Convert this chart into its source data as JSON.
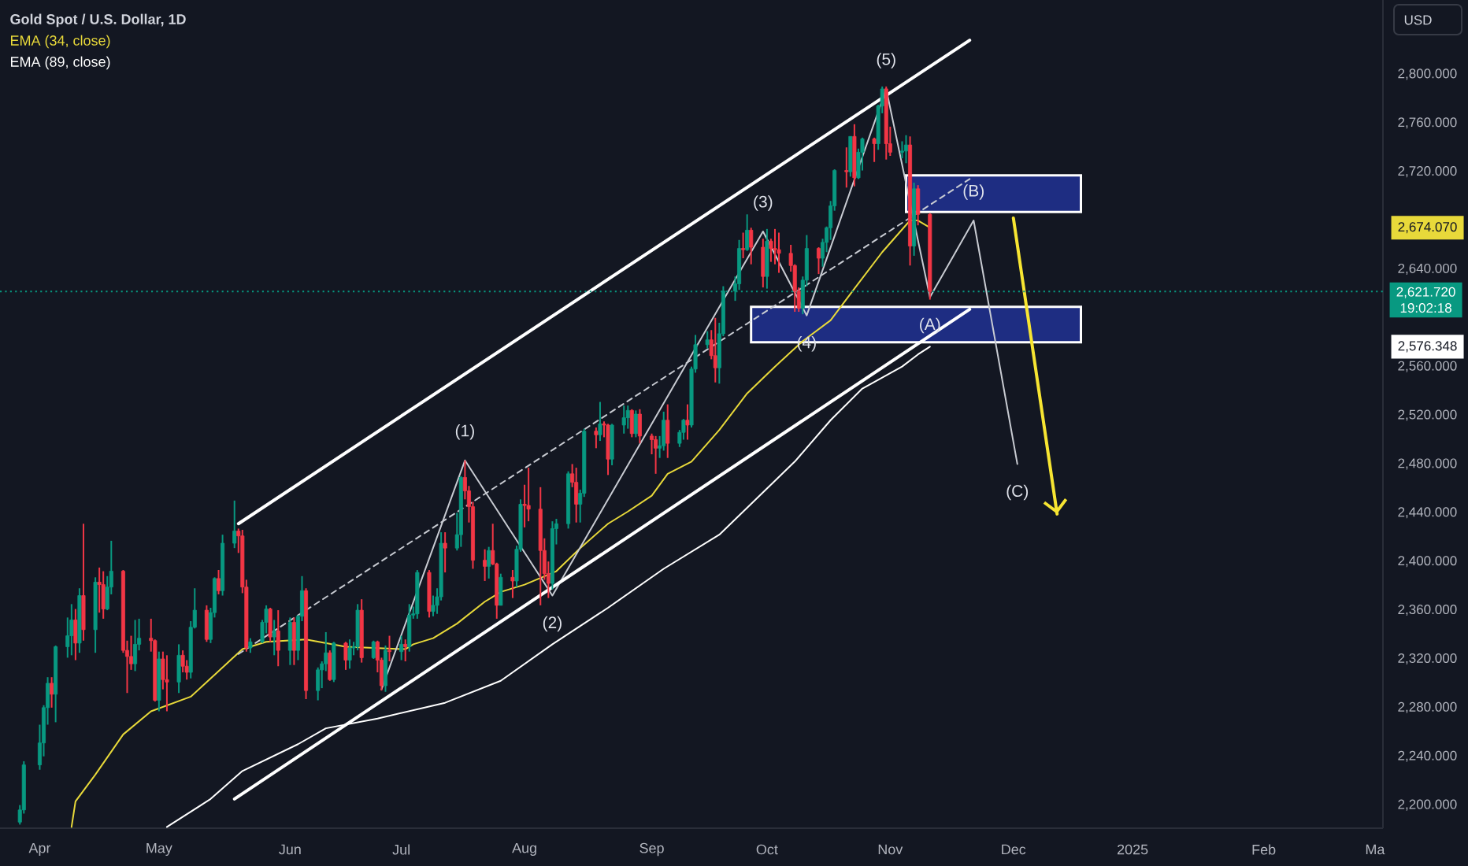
{
  "chart_data": {
    "type": "candlestick",
    "title": "Gold Spot / U.S. Dollar, 1D",
    "ylabel": "USD",
    "legend": "top left",
    "xlim": [
      "2024-03-22",
      "2025-03-05"
    ],
    "xticks": [
      {
        "value": "2024-04-01",
        "label": "Apr"
      },
      {
        "value": "2024-05-01",
        "label": "May"
      },
      {
        "value": "2024-06-03",
        "label": "Jun"
      },
      {
        "value": "2024-07-01",
        "label": "Jul"
      },
      {
        "value": "2024-08-01",
        "label": "Aug"
      },
      {
        "value": "2024-09-02",
        "label": "Sep"
      },
      {
        "value": "2024-10-01",
        "label": "Oct"
      },
      {
        "value": "2024-11-01",
        "label": "Nov"
      },
      {
        "value": "2024-12-02",
        "label": "Dec"
      },
      {
        "value": "2025-01-01",
        "label": "2025"
      },
      {
        "value": "2025-02-03",
        "label": "Feb"
      },
      {
        "value": "2025-03-03",
        "label": "Ma"
      }
    ],
    "ylim": [
      2181,
      2861
    ],
    "yticks": [
      {
        "value": 2200,
        "label": "2,200.000"
      },
      {
        "value": 2240,
        "label": "2,240.000"
      },
      {
        "value": 2280,
        "label": "2,280.000"
      },
      {
        "value": 2320,
        "label": "2,320.000"
      },
      {
        "value": 2360,
        "label": "2,360.000"
      },
      {
        "value": 2400,
        "label": "2,400.000"
      },
      {
        "value": 2440,
        "label": "2,440.000"
      },
      {
        "value": 2480,
        "label": "2,480.000"
      },
      {
        "value": 2520,
        "label": "2,520.000"
      },
      {
        "value": 2560,
        "label": "2,560.000"
      },
      {
        "value": 2576.348,
        "label": "2,576.348"
      },
      {
        "value": 2640,
        "label": "2,640.000"
      },
      {
        "value": 2674.07,
        "label": "2,674.070"
      },
      {
        "value": 2720,
        "label": "2,720.000"
      },
      {
        "value": 2760,
        "label": "2,760.000"
      },
      {
        "value": 2800,
        "label": "2,800.000"
      }
    ],
    "x": [
      "2024-03-27",
      "2024-03-28",
      "2024-04-01",
      "2024-04-02",
      "2024-04-03",
      "2024-04-04",
      "2024-04-05",
      "2024-04-08",
      "2024-04-09",
      "2024-04-10",
      "2024-04-11",
      "2024-04-12",
      "2024-04-15",
      "2024-04-16",
      "2024-04-17",
      "2024-04-18",
      "2024-04-19",
      "2024-04-22",
      "2024-04-23",
      "2024-04-24",
      "2024-04-25",
      "2024-04-26",
      "2024-04-29",
      "2024-04-30",
      "2024-05-01",
      "2024-05-02",
      "2024-05-03",
      "2024-05-06",
      "2024-05-07",
      "2024-05-08",
      "2024-05-09",
      "2024-05-10",
      "2024-05-13",
      "2024-05-14",
      "2024-05-15",
      "2024-05-16",
      "2024-05-17",
      "2024-05-20",
      "2024-05-21",
      "2024-05-22",
      "2024-05-23",
      "2024-05-24",
      "2024-05-27",
      "2024-05-28",
      "2024-05-29",
      "2024-05-30",
      "2024-05-31",
      "2024-06-03",
      "2024-06-04",
      "2024-06-05",
      "2024-06-06",
      "2024-06-07",
      "2024-06-10",
      "2024-06-11",
      "2024-06-12",
      "2024-06-13",
      "2024-06-14",
      "2024-06-17",
      "2024-06-18",
      "2024-06-19",
      "2024-06-20",
      "2024-06-21",
      "2024-06-24",
      "2024-06-25",
      "2024-06-26",
      "2024-06-27",
      "2024-06-28",
      "2024-07-01",
      "2024-07-02",
      "2024-07-03",
      "2024-07-04",
      "2024-07-05",
      "2024-07-08",
      "2024-07-09",
      "2024-07-10",
      "2024-07-11",
      "2024-07-12",
      "2024-07-15",
      "2024-07-16",
      "2024-07-17",
      "2024-07-18",
      "2024-07-19",
      "2024-07-22",
      "2024-07-23",
      "2024-07-24",
      "2024-07-25",
      "2024-07-26",
      "2024-07-29",
      "2024-07-30",
      "2024-07-31",
      "2024-08-01",
      "2024-08-02",
      "2024-08-05",
      "2024-08-06",
      "2024-08-07",
      "2024-08-08",
      "2024-08-09",
      "2024-08-12",
      "2024-08-13",
      "2024-08-14",
      "2024-08-15",
      "2024-08-16",
      "2024-08-19",
      "2024-08-20",
      "2024-08-21",
      "2024-08-22",
      "2024-08-23",
      "2024-08-26",
      "2024-08-27",
      "2024-08-28",
      "2024-08-29",
      "2024-08-30",
      "2024-09-02",
      "2024-09-03",
      "2024-09-04",
      "2024-09-05",
      "2024-09-06",
      "2024-09-09",
      "2024-09-10",
      "2024-09-11",
      "2024-09-12",
      "2024-09-13",
      "2024-09-16",
      "2024-09-17",
      "2024-09-18",
      "2024-09-19",
      "2024-09-20",
      "2024-09-23",
      "2024-09-24",
      "2024-09-25",
      "2024-09-26",
      "2024-09-27",
      "2024-09-30",
      "2024-10-01",
      "2024-10-02",
      "2024-10-03",
      "2024-10-04",
      "2024-10-07",
      "2024-10-08",
      "2024-10-09",
      "2024-10-10",
      "2024-10-11",
      "2024-10-14",
      "2024-10-15",
      "2024-10-16",
      "2024-10-17",
      "2024-10-18",
      "2024-10-21",
      "2024-10-22",
      "2024-10-23",
      "2024-10-24",
      "2024-10-25",
      "2024-10-28",
      "2024-10-29",
      "2024-10-30",
      "2024-10-31",
      "2024-11-01",
      "2024-11-04",
      "2024-11-05",
      "2024-11-06",
      "2024-11-07",
      "2024-11-08",
      "2024-11-11"
    ],
    "ohlc": [
      [
        2186,
        2200,
        2184,
        2196
      ],
      [
        2196,
        2236,
        2193,
        2233
      ],
      [
        2233,
        2266,
        2229,
        2251
      ],
      [
        2251,
        2282,
        2240,
        2280
      ],
      [
        2280,
        2305,
        2266,
        2300
      ],
      [
        2300,
        2305,
        2280,
        2291
      ],
      [
        2291,
        2331,
        2268,
        2330
      ],
      [
        2330,
        2354,
        2321,
        2339
      ],
      [
        2339,
        2365,
        2323,
        2352
      ],
      [
        2352,
        2361,
        2319,
        2333
      ],
      [
        2333,
        2378,
        2325,
        2372
      ],
      [
        2372,
        2431,
        2335,
        2344
      ],
      [
        2344,
        2387,
        2325,
        2383
      ],
      [
        2383,
        2395,
        2358,
        2381
      ],
      [
        2381,
        2392,
        2353,
        2361
      ],
      [
        2361,
        2388,
        2360,
        2379
      ],
      [
        2379,
        2417,
        2373,
        2392
      ],
      [
        2392,
        2393,
        2325,
        2327
      ],
      [
        2327,
        2335,
        2292,
        2322
      ],
      [
        2322,
        2339,
        2311,
        2316
      ],
      [
        2316,
        2352,
        2310,
        2332
      ],
      [
        2332,
        2353,
        2327,
        2337
      ],
      [
        2337,
        2353,
        2326,
        2335
      ],
      [
        2335,
        2336,
        2285,
        2286
      ],
      [
        2286,
        2326,
        2277,
        2320
      ],
      [
        2320,
        2326,
        2295,
        2303
      ],
      [
        2303,
        2323,
        2277,
        2301
      ],
      [
        2301,
        2332,
        2292,
        2323
      ],
      [
        2323,
        2327,
        2309,
        2314
      ],
      [
        2314,
        2319,
        2303,
        2309
      ],
      [
        2309,
        2351,
        2304,
        2346
      ],
      [
        2346,
        2378,
        2345,
        2360
      ],
      [
        2360,
        2364,
        2334,
        2336
      ],
      [
        2336,
        2362,
        2333,
        2358
      ],
      [
        2358,
        2387,
        2354,
        2386
      ],
      [
        2386,
        2393,
        2373,
        2376
      ],
      [
        2376,
        2422,
        2372,
        2415
      ],
      [
        2415,
        2450,
        2411,
        2425
      ],
      [
        2425,
        2427,
        2407,
        2421
      ],
      [
        2421,
        2426,
        2374,
        2379
      ],
      [
        2379,
        2385,
        2326,
        2329
      ],
      [
        2329,
        2337,
        2325,
        2334
      ],
      [
        2334,
        2352,
        2333,
        2350
      ],
      [
        2350,
        2364,
        2341,
        2361
      ],
      [
        2361,
        2362,
        2334,
        2338
      ],
      [
        2338,
        2352,
        2323,
        2343
      ],
      [
        2343,
        2360,
        2314,
        2327
      ],
      [
        2327,
        2354,
        2315,
        2350
      ],
      [
        2350,
        2354,
        2315,
        2327
      ],
      [
        2327,
        2356,
        2319,
        2355
      ],
      [
        2355,
        2388,
        2351,
        2376
      ],
      [
        2376,
        2378,
        2287,
        2294
      ],
      [
        2294,
        2313,
        2286,
        2311
      ],
      [
        2311,
        2318,
        2296,
        2316
      ],
      [
        2316,
        2342,
        2310,
        2325
      ],
      [
        2325,
        2327,
        2302,
        2303
      ],
      [
        2303,
        2334,
        2301,
        2333
      ],
      [
        2333,
        2334,
        2311,
        2319
      ],
      [
        2319,
        2336,
        2312,
        2329
      ],
      [
        2329,
        2334,
        2323,
        2330
      ],
      [
        2330,
        2365,
        2327,
        2360
      ],
      [
        2360,
        2369,
        2317,
        2321
      ],
      [
        2321,
        2335,
        2320,
        2334
      ],
      [
        2334,
        2335,
        2309,
        2319
      ],
      [
        2319,
        2321,
        2294,
        2298
      ],
      [
        2298,
        2331,
        2293,
        2327
      ],
      [
        2327,
        2339,
        2318,
        2326
      ],
      [
        2326,
        2339,
        2319,
        2332
      ],
      [
        2332,
        2336,
        2318,
        2330
      ],
      [
        2330,
        2365,
        2326,
        2356
      ],
      [
        2356,
        2363,
        2353,
        2357
      ],
      [
        2357,
        2393,
        2353,
        2391
      ],
      [
        2391,
        2393,
        2354,
        2359
      ],
      [
        2359,
        2372,
        2355,
        2364
      ],
      [
        2364,
        2378,
        2357,
        2371
      ],
      [
        2371,
        2424,
        2368,
        2415
      ],
      [
        2415,
        2424,
        2391,
        2411
      ],
      [
        2411,
        2440,
        2409,
        2422
      ],
      [
        2422,
        2470,
        2412,
        2469
      ],
      [
        2469,
        2483,
        2451,
        2458
      ],
      [
        2458,
        2462,
        2432,
        2445
      ],
      [
        2445,
        2449,
        2394,
        2401
      ],
      [
        2401,
        2410,
        2384,
        2396
      ],
      [
        2396,
        2412,
        2386,
        2409
      ],
      [
        2409,
        2431,
        2397,
        2398
      ],
      [
        2398,
        2399,
        2353,
        2364
      ],
      [
        2364,
        2390,
        2364,
        2387
      ],
      [
        2387,
        2393,
        2370,
        2384
      ],
      [
        2384,
        2413,
        2379,
        2410
      ],
      [
        2410,
        2451,
        2408,
        2447
      ],
      [
        2447,
        2463,
        2428,
        2446
      ],
      [
        2446,
        2477,
        2433,
        2443
      ],
      [
        2443,
        2461,
        2364,
        2409
      ],
      [
        2409,
        2419,
        2385,
        2390
      ],
      [
        2390,
        2400,
        2370,
        2382
      ],
      [
        2382,
        2433,
        2377,
        2427
      ],
      [
        2427,
        2435,
        2414,
        2431
      ],
      [
        2431,
        2474,
        2427,
        2472
      ],
      [
        2472,
        2480,
        2461,
        2465
      ],
      [
        2465,
        2477,
        2432,
        2447
      ],
      [
        2447,
        2459,
        2432,
        2456
      ],
      [
        2456,
        2509,
        2453,
        2507
      ],
      [
        2507,
        2510,
        2493,
        2504
      ],
      [
        2504,
        2531,
        2499,
        2513
      ],
      [
        2513,
        2515,
        2502,
        2512
      ],
      [
        2512,
        2513,
        2471,
        2484
      ],
      [
        2484,
        2513,
        2479,
        2512
      ],
      [
        2512,
        2528,
        2505,
        2518
      ],
      [
        2518,
        2528,
        2509,
        2524
      ],
      [
        2524,
        2525,
        2502,
        2505
      ],
      [
        2505,
        2524,
        2502,
        2521
      ],
      [
        2521,
        2525,
        2497,
        2503
      ],
      [
        2503,
        2505,
        2488,
        2500
      ],
      [
        2500,
        2503,
        2472,
        2493
      ],
      [
        2493,
        2503,
        2485,
        2495
      ],
      [
        2495,
        2523,
        2491,
        2516
      ],
      [
        2516,
        2529,
        2485,
        2497
      ],
      [
        2497,
        2508,
        2494,
        2506
      ],
      [
        2506,
        2517,
        2500,
        2516
      ],
      [
        2516,
        2529,
        2500,
        2512
      ],
      [
        2512,
        2560,
        2510,
        2558
      ],
      [
        2558,
        2586,
        2555,
        2578
      ],
      [
        2578,
        2589,
        2575,
        2582
      ],
      [
        2582,
        2590,
        2566,
        2569
      ],
      [
        2569,
        2600,
        2547,
        2559
      ],
      [
        2559,
        2596,
        2546,
        2587
      ],
      [
        2587,
        2626,
        2585,
        2622
      ],
      [
        2622,
        2634,
        2614,
        2628
      ],
      [
        2628,
        2664,
        2623,
        2657
      ],
      [
        2657,
        2670,
        2649,
        2656
      ],
      [
        2656,
        2685,
        2655,
        2672
      ],
      [
        2672,
        2674,
        2644,
        2658
      ],
      [
        2658,
        2665,
        2625,
        2634
      ],
      [
        2634,
        2673,
        2624,
        2663
      ],
      [
        2663,
        2665,
        2646,
        2657
      ],
      [
        2657,
        2673,
        2644,
        2656
      ],
      [
        2656,
        2670,
        2637,
        2653
      ],
      [
        2653,
        2660,
        2638,
        2643
      ],
      [
        2643,
        2644,
        2605,
        2622
      ],
      [
        2622,
        2625,
        2605,
        2608
      ],
      [
        2608,
        2634,
        2603,
        2631
      ],
      [
        2631,
        2668,
        2626,
        2657
      ],
      [
        2657,
        2658,
        2636,
        2649
      ],
      [
        2649,
        2665,
        2642,
        2662
      ],
      [
        2662,
        2675,
        2654,
        2674
      ],
      [
        2674,
        2696,
        2664,
        2692
      ],
      [
        2692,
        2722,
        2688,
        2721
      ],
      [
        2721,
        2740,
        2707,
        2720
      ],
      [
        2720,
        2749,
        2716,
        2749
      ],
      [
        2749,
        2759,
        2708,
        2715
      ],
      [
        2715,
        2739,
        2714,
        2736
      ],
      [
        2736,
        2748,
        2721,
        2747
      ],
      [
        2747,
        2748,
        2728,
        2743
      ],
      [
        2743,
        2775,
        2738,
        2774
      ],
      [
        2774,
        2790,
        2768,
        2788
      ],
      [
        2788,
        2790,
        2730,
        2743
      ],
      [
        2743,
        2757,
        2733,
        2736
      ],
      [
        2736,
        2745,
        2731,
        2737
      ],
      [
        2737,
        2750,
        2727,
        2742
      ],
      [
        2742,
        2749,
        2643,
        2659
      ],
      [
        2659,
        2711,
        2651,
        2706
      ],
      [
        2706,
        2709,
        2676,
        2685
      ],
      [
        2685,
        2686,
        2615,
        2621.72
      ]
    ],
    "series": [
      {
        "type": "line",
        "name": "EMA (34, close)",
        "color": "#e8d93a",
        "x": [
          "2024-04-09",
          "2024-04-10",
          "2024-04-15",
          "2024-04-22",
          "2024-04-29",
          "2024-05-09",
          "2024-05-16",
          "2024-05-22",
          "2024-05-28",
          "2024-06-07",
          "2024-06-17",
          "2024-07-02",
          "2024-07-04",
          "2024-07-09",
          "2024-07-15",
          "2024-07-22",
          "2024-07-26",
          "2024-08-01",
          "2024-08-09",
          "2024-08-15",
          "2024-08-22",
          "2024-08-27",
          "2024-09-02",
          "2024-09-06",
          "2024-09-12",
          "2024-09-19",
          "2024-09-26",
          "2024-10-03",
          "2024-10-10",
          "2024-10-17",
          "2024-10-23",
          "2024-10-30",
          "2024-11-06",
          "2024-11-08",
          "2024-11-11"
        ],
        "values": [
          2182,
          2203,
          2225,
          2258,
          2277,
          2289,
          2310,
          2328,
          2334,
          2336,
          2330,
          2328,
          2332,
          2337,
          2349,
          2367,
          2375,
          2381,
          2392,
          2411,
          2431,
          2441,
          2454,
          2472,
          2482,
          2508,
          2538,
          2560,
          2581,
          2598,
          2624,
          2654,
          2680,
          2680,
          2674.07
        ]
      },
      {
        "type": "line",
        "name": "EMA (89, close)",
        "color": "#ffffff",
        "x": [
          "2024-05-03",
          "2024-05-14",
          "2024-05-22",
          "2024-06-05",
          "2024-06-12",
          "2024-06-25",
          "2024-07-12",
          "2024-07-26",
          "2024-08-08",
          "2024-08-22",
          "2024-09-05",
          "2024-09-19",
          "2024-10-08",
          "2024-10-17",
          "2024-10-25",
          "2024-11-04",
          "2024-11-08",
          "2024-11-11"
        ],
        "values": [
          2182,
          2205,
          2228,
          2250,
          2263,
          2271,
          2284,
          2302,
          2332,
          2362,
          2394,
          2422,
          2482,
          2516,
          2542,
          2560,
          2570,
          2576.348
        ]
      },
      {
        "type": "line",
        "color": "#c8cbd2",
        "x": [
          "2024-06-26",
          "2024-07-17",
          "2024-08-08",
          "2024-09-30",
          "2024-10-11",
          "2024-10-31",
          "2024-11-11",
          "2024-11-22",
          "2024-12-03"
        ],
        "values": [
          2295,
          2483,
          2372,
          2671,
          2602,
          2788,
          2617,
          2680,
          2480
        ]
      },
      {
        "type": "line",
        "color": "#ffffff",
        "x": [
          "2024-05-21",
          "2024-11-21"
        ],
        "values": [
          2431,
          2828
        ]
      },
      {
        "type": "line",
        "color": "#ffffff",
        "x": [
          "2024-05-20",
          "2024-11-21"
        ],
        "values": [
          2205,
          2607
        ]
      },
      {
        "type": "line",
        "color": "#c8cbd2",
        "line_style": "dashed",
        "x": [
          "2024-05-21",
          "2024-11-21"
        ],
        "values": [
          2324,
          2714
        ]
      },
      {
        "type": "area",
        "color": "#1e2d82",
        "x": [
          "2024-09-27",
          "2024-12-19"
        ],
        "values": [
          null,
          null
        ],
        "lower": [
          2580,
          2580
        ],
        "upper": [
          2609,
          2609
        ]
      },
      {
        "type": "area",
        "color": "#1e2d82",
        "x": [
          "2024-11-05",
          "2024-12-19"
        ],
        "values": [
          null,
          null
        ],
        "lower": [
          2687,
          2687
        ],
        "upper": [
          2717,
          2717
        ]
      },
      {
        "type": "line",
        "color": "#f7e532",
        "x": [
          "2024-12-02",
          "2024-12-13"
        ],
        "values": [
          2682,
          2439
        ]
      }
    ],
    "ref_lines": [
      {
        "axis": "y",
        "value": 2621.72,
        "label": "2,621.720",
        "color": "#089981",
        "line_style": "dotted"
      }
    ],
    "annotations": [
      {
        "text": "(1)",
        "x": "2024-07-17",
        "y": 2483
      },
      {
        "text": "(2)",
        "x": "2024-08-08",
        "y": 2372
      },
      {
        "text": "(3)",
        "x": "2024-09-30",
        "y": 2671
      },
      {
        "text": "(4)",
        "x": "2024-10-11",
        "y": 2602
      },
      {
        "text": "(5)",
        "x": "2024-10-31",
        "y": 2788
      },
      {
        "text": "(A)",
        "x": "2024-11-11",
        "y": 2617
      },
      {
        "text": "(B)",
        "x": "2024-11-22",
        "y": 2680
      },
      {
        "text": "(C)",
        "x": "2024-12-03",
        "y": 2480
      },
      "19:02:18"
    ]
  }
}
